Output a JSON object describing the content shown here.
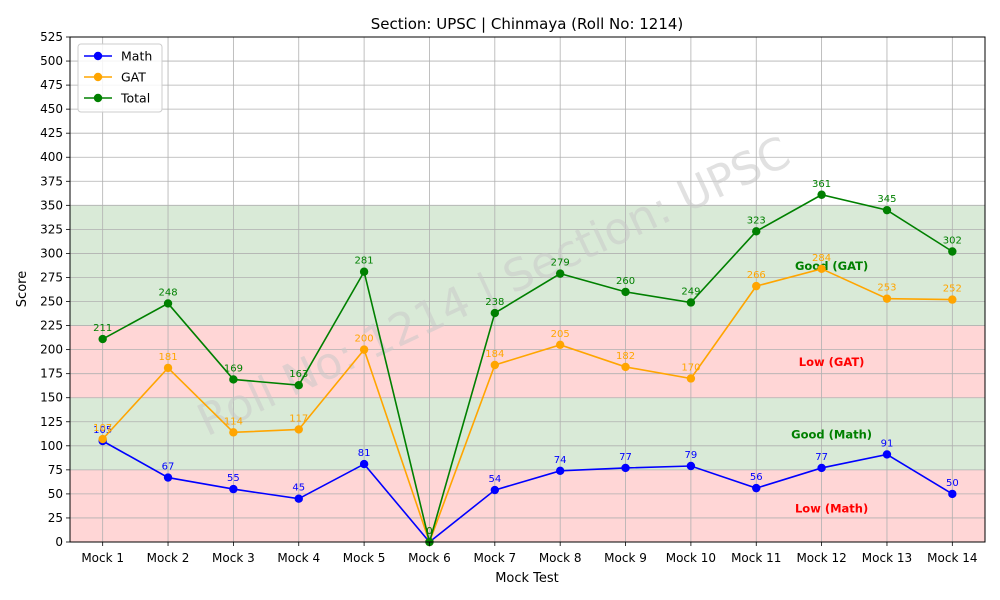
{
  "chart_data": {
    "type": "line",
    "title": "Section: UPSC | Chinmaya  (Roll No: 1214)",
    "xlabel": "Mock Test",
    "ylabel": "Score",
    "ylim": [
      0,
      525
    ],
    "ytick_step": 25,
    "grid": true,
    "legend_position": "top-left",
    "categories": [
      "Mock 1",
      "Mock 2",
      "Mock 3",
      "Mock 4",
      "Mock 5",
      "Mock 6",
      "Mock 7",
      "Mock 8",
      "Mock 9",
      "Mock 10",
      "Mock 11",
      "Mock 12",
      "Mock 13",
      "Mock 14"
    ],
    "series": [
      {
        "name": "Math",
        "color": "#0000ff",
        "values": [
          105,
          67,
          55,
          45,
          81,
          0,
          54,
          74,
          77,
          79,
          56,
          77,
          91,
          50
        ]
      },
      {
        "name": "GAT",
        "color": "#ffa500",
        "values": [
          107,
          181,
          114,
          117,
          200,
          0,
          184,
          205,
          182,
          170,
          266,
          284,
          253,
          252
        ]
      },
      {
        "name": "Total",
        "color": "#008000",
        "values": [
          211,
          248,
          169,
          163,
          281,
          0,
          238,
          279,
          260,
          249,
          323,
          361,
          345,
          302
        ]
      }
    ],
    "bands": [
      {
        "label": "Low (Math)",
        "from": 0,
        "to": 75,
        "color": "#ffd6d6",
        "label_color": "#ff0000",
        "label_y": 35
      },
      {
        "label": "Good (Math)",
        "from": 75,
        "to": 150,
        "color": "#d9ead7",
        "label_color": "#008000",
        "label_y": 112
      },
      {
        "label": "Low (GAT)",
        "from": 150,
        "to": 225,
        "color": "#ffd6d6",
        "label_color": "#ff0000",
        "label_y": 187
      },
      {
        "label": "Good (GAT)",
        "from": 225,
        "to": 350,
        "color": "#d9ead7",
        "label_color": "#008000",
        "label_y": 287
      }
    ],
    "watermark": "Roll No: 1214 | Section: UPSC"
  }
}
